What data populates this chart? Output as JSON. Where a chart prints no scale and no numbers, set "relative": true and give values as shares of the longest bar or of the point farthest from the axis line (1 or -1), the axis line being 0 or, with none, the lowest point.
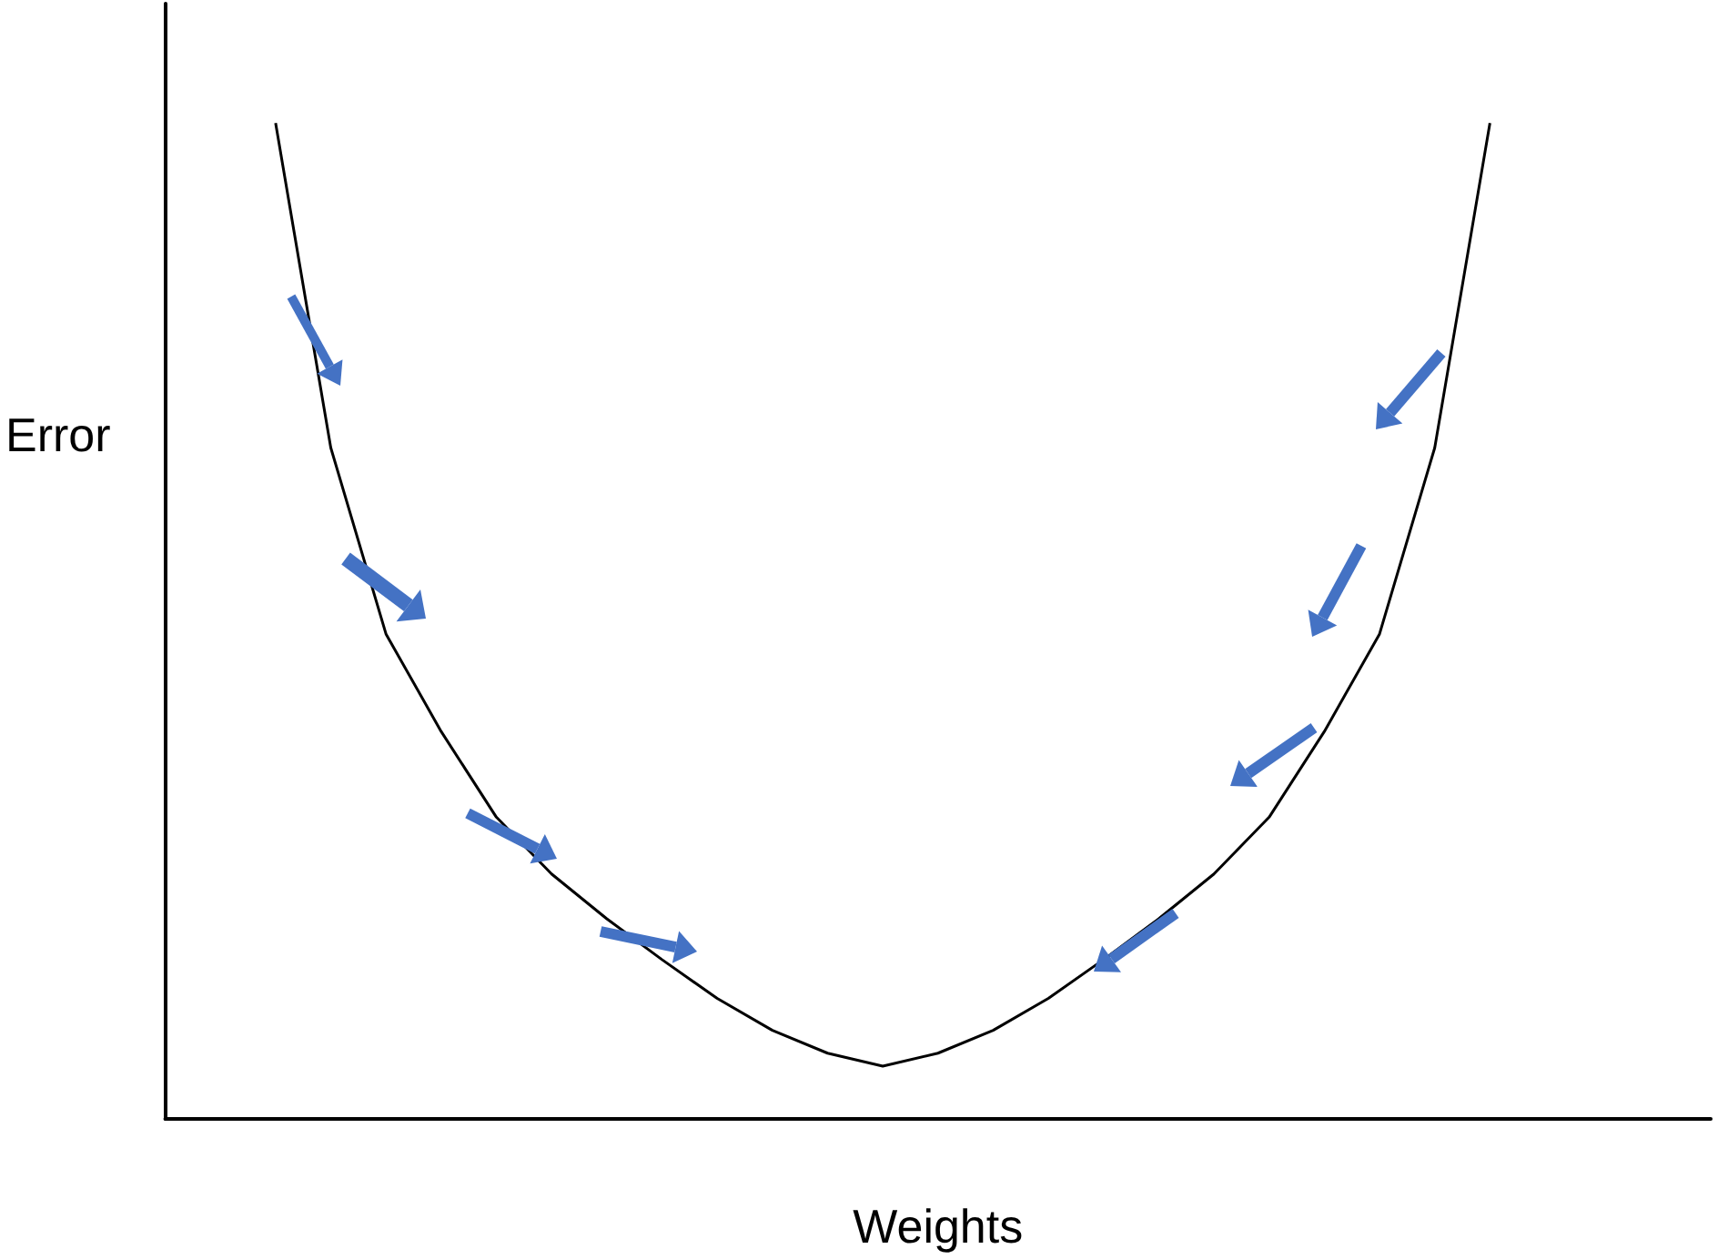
{
  "chart_data": {
    "type": "line",
    "relative": true,
    "xlabel": "Weights",
    "ylabel": "Error",
    "marker": "none",
    "grid": false,
    "categories": [
      null,
      null,
      null,
      null,
      null,
      null,
      null,
      null,
      null,
      null,
      null,
      null,
      null,
      null,
      null,
      null,
      null,
      null,
      null,
      null,
      null,
      null,
      null,
      null,
      null,
      null,
      null,
      null,
      null
    ],
    "series": [
      {
        "color": "#000000",
        "values": [
          null,
          null,
          1.0,
          0.674,
          0.487,
          0.389,
          0.303,
          0.246,
          0.201,
          0.16,
          0.121,
          0.089,
          0.066,
          0.053,
          0.066,
          0.089,
          0.121,
          0.16,
          0.201,
          0.246,
          0.303,
          0.389,
          0.487,
          0.674,
          1.0,
          null,
          null,
          null,
          null
        ]
      }
    ]
  }
}
